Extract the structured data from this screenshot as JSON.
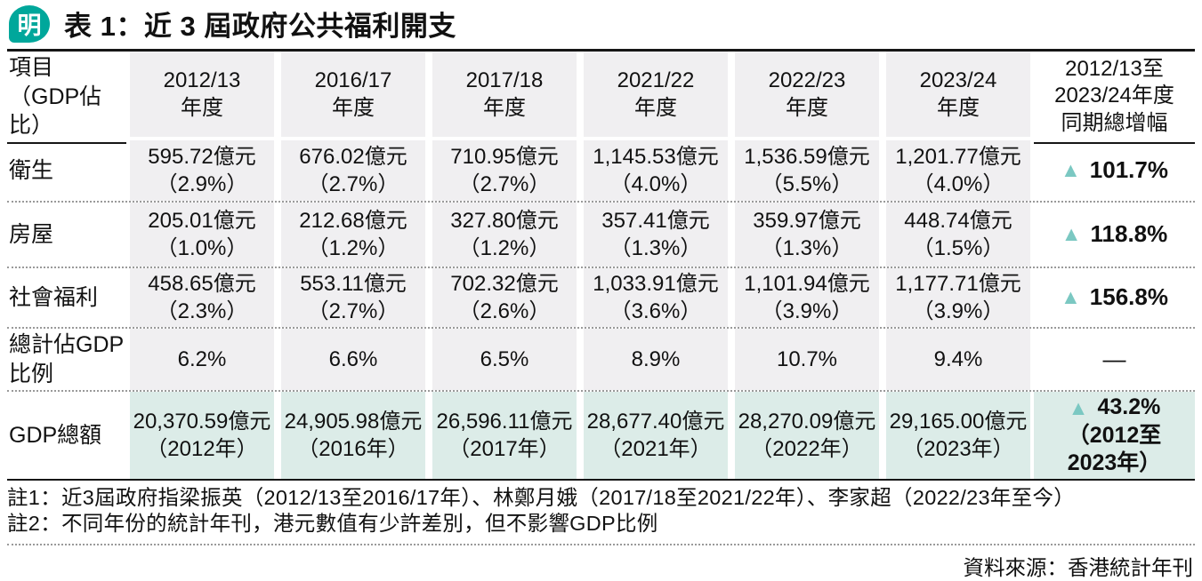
{
  "logo": {
    "text": "明",
    "bg_color": "#00a79b"
  },
  "title": "表 1：近 3 屆政府公共福利開支",
  "colors": {
    "accent_teal": "#00a79b",
    "triangle_teal": "#7bc8c2",
    "gdp_row_bg": "#dcece8",
    "column_bg": "#f0eff1"
  },
  "table": {
    "corner_header": {
      "line1": "項目",
      "line2": "（GDP佔比）"
    },
    "year_headers": [
      {
        "line1": "2012/13",
        "line2": "年度"
      },
      {
        "line1": "2016/17",
        "line2": "年度"
      },
      {
        "line1": "2017/18",
        "line2": "年度"
      },
      {
        "line1": "2021/22",
        "line2": "年度"
      },
      {
        "line1": "2022/23",
        "line2": "年度"
      },
      {
        "line1": "2023/24",
        "line2": "年度"
      }
    ],
    "growth_header": {
      "line1": "2012/13至",
      "line2": "2023/24年度",
      "line3": "同期總增幅"
    },
    "rows": [
      {
        "label_line1": "衛生",
        "cells": [
          {
            "value": "595.72億元",
            "sub": "（2.9%）"
          },
          {
            "value": "676.02億元",
            "sub": "（2.7%）"
          },
          {
            "value": "710.95億元",
            "sub": "（2.7%）"
          },
          {
            "value": "1,145.53億元",
            "sub": "（4.0%）"
          },
          {
            "value": "1,536.59億元",
            "sub": "（5.5%）"
          },
          {
            "value": "1,201.77億元",
            "sub": "（4.0%）"
          }
        ],
        "growth": {
          "arrow": "▲",
          "value": "101.7%"
        }
      },
      {
        "label_line1": "房屋",
        "cells": [
          {
            "value": "205.01億元",
            "sub": "（1.0%）"
          },
          {
            "value": "212.68億元",
            "sub": "（1.2%）"
          },
          {
            "value": "327.80億元",
            "sub": "（1.2%）"
          },
          {
            "value": "357.41億元",
            "sub": "（1.3%）"
          },
          {
            "value": "359.97億元",
            "sub": "（1.3%）"
          },
          {
            "value": "448.74億元",
            "sub": "（1.5%）"
          }
        ],
        "growth": {
          "arrow": "▲",
          "value": "118.8%"
        }
      },
      {
        "label_line1": "社會福利",
        "cells": [
          {
            "value": "458.65億元",
            "sub": "（2.3%）"
          },
          {
            "value": "553.11億元",
            "sub": "（2.7%）"
          },
          {
            "value": "702.32億元",
            "sub": "（2.6%）"
          },
          {
            "value": "1,033.91億元",
            "sub": "（3.6%）"
          },
          {
            "value": "1,101.94億元",
            "sub": "（3.9%）"
          },
          {
            "value": "1,177.71億元",
            "sub": "（3.9%）"
          }
        ],
        "growth": {
          "arrow": "▲",
          "value": "156.8%"
        }
      },
      {
        "label_line1": "總計佔GDP",
        "label_line2": "比例",
        "cells": [
          {
            "value": "6.2%"
          },
          {
            "value": "6.6%"
          },
          {
            "value": "6.5%"
          },
          {
            "value": "8.9%"
          },
          {
            "value": "10.7%"
          },
          {
            "value": "9.4%"
          }
        ],
        "growth": {
          "value": "—"
        }
      },
      {
        "label_line1": "GDP總額",
        "cells": [
          {
            "value": "20,370.59億元",
            "sub": "（2012年）"
          },
          {
            "value": "24,905.98億元",
            "sub": "（2016年）"
          },
          {
            "value": "26,596.11億元",
            "sub": "（2017年）"
          },
          {
            "value": "28,677.40億元",
            "sub": "（2021年）"
          },
          {
            "value": "28,270.09億元",
            "sub": "（2022年）"
          },
          {
            "value": "29,165.00億元",
            "sub": "（2023年）"
          }
        ],
        "growth": {
          "arrow": "▲",
          "value": "43.2%",
          "sub1": "（2012至",
          "sub2": "2023年）"
        }
      }
    ]
  },
  "notes": [
    "註1：近3屆政府指梁振英（2012/13至2016/17年）、林鄭月娥（2017/18至2021/22年）、李家超（2022/23年至今）",
    "註2：不同年份的統計年刊，港元數值有少許差別，但不影響GDP比例"
  ],
  "source": "資料來源：香港統計年刊",
  "chart_data": {
    "type": "table",
    "title": "表 1：近 3 屆政府公共福利開支",
    "columns": [
      "項目（GDP佔比）",
      "2012/13年度",
      "2016/17年度",
      "2017/18年度",
      "2021/22年度",
      "2022/23年度",
      "2023/24年度",
      "2012/13至2023/24年度同期總增幅"
    ],
    "rows": [
      [
        "衛生",
        "595.72億元（2.9%）",
        "676.02億元（2.7%）",
        "710.95億元（2.7%）",
        "1,145.53億元（4.0%）",
        "1,536.59億元（5.5%）",
        "1,201.77億元（4.0%）",
        "▲101.7%"
      ],
      [
        "房屋",
        "205.01億元（1.0%）",
        "212.68億元（1.2%）",
        "327.80億元（1.2%）",
        "357.41億元（1.3%）",
        "359.97億元（1.3%）",
        "448.74億元（1.5%）",
        "▲118.8%"
      ],
      [
        "社會福利",
        "458.65億元（2.3%）",
        "553.11億元（2.7%）",
        "702.32億元（2.6%）",
        "1,033.91億元（3.6%）",
        "1,101.94億元（3.9%）",
        "1,177.71億元（3.9%）",
        "▲156.8%"
      ],
      [
        "總計佔GDP比例",
        "6.2%",
        "6.6%",
        "6.5%",
        "8.9%",
        "10.7%",
        "9.4%",
        "—"
      ],
      [
        "GDP總額",
        "20,370.59億元（2012年）",
        "24,905.98億元（2016年）",
        "26,596.11億元（2017年）",
        "28,677.40億元（2021年）",
        "28,270.09億元（2022年）",
        "29,165.00億元（2023年）",
        "▲43.2%（2012至2023年）"
      ]
    ],
    "source": "資料來源：香港統計年刊"
  }
}
